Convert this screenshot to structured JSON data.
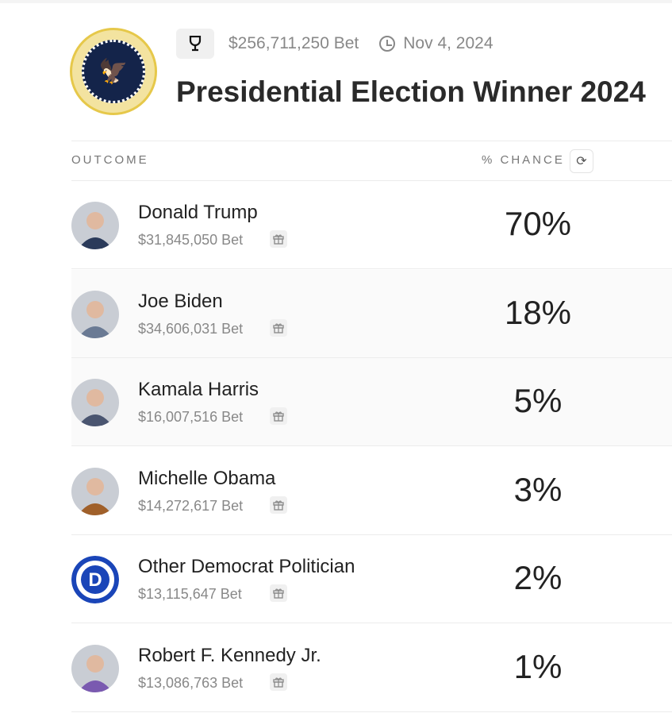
{
  "header": {
    "total_bet": "$256,711,250 Bet",
    "date": "Nov 4, 2024",
    "title": "Presidential Election Winner 2024"
  },
  "columns": {
    "outcome": "OUTCOME",
    "chance": "% CHANCE"
  },
  "outcomes": [
    {
      "name": "Donald Trump",
      "bet": "$31,845,050 Bet",
      "chance": "70%",
      "color": "#2a3a5a"
    },
    {
      "name": "Joe Biden",
      "bet": "$34,606,031 Bet",
      "chance": "18%",
      "color": "#6a7a94"
    },
    {
      "name": "Kamala Harris",
      "bet": "$16,007,516 Bet",
      "chance": "5%",
      "color": "#4a5570"
    },
    {
      "name": "Michelle Obama",
      "bet": "$14,272,617 Bet",
      "chance": "3%",
      "color": "#a0602a"
    },
    {
      "name": "Other Democrat Politician",
      "bet": "$13,115,647 Bet",
      "chance": "2%",
      "color": "#1a45b8"
    },
    {
      "name": "Robert F. Kennedy Jr.",
      "bet": "$13,086,763 Bet",
      "chance": "1%",
      "color": "#7a5ab0"
    }
  ]
}
